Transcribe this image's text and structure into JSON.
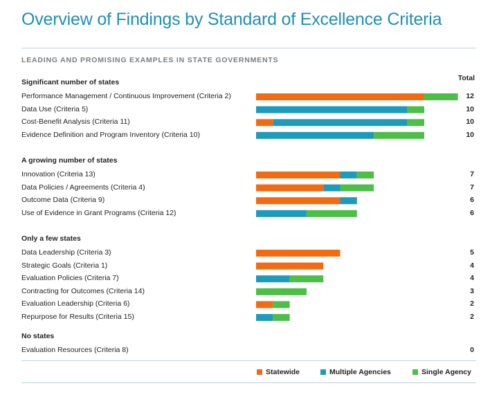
{
  "page": {
    "title": "Overview of Findings by Standard of Excellence Criteria",
    "subtitle": "LEADING AND PROMISING EXAMPLES IN STATE GOVERNMENTS",
    "total_header": "Total"
  },
  "colors": {
    "statewide": "#f26b13",
    "multiple_agencies": "#1d9bbd",
    "single_agency": "#4cc046",
    "title": "#1e90b8"
  },
  "legend": [
    {
      "label": "Statewide",
      "color": "#f26b13"
    },
    {
      "label": "Multiple Agencies",
      "color": "#1d9bbd"
    },
    {
      "label": "Single Agency",
      "color": "#4cc046"
    }
  ],
  "chart_data": {
    "type": "bar",
    "orientation": "horizontal",
    "stacked": true,
    "series_names": [
      "Statewide",
      "Multiple Agencies",
      "Single Agency"
    ],
    "groups": [
      {
        "name": "Significant number of states",
        "rows": [
          {
            "label": "Performance Management / Continuous Improvement (Criteria 2)",
            "statewide": 10,
            "multiple": 0,
            "single": 2,
            "total": "12"
          },
          {
            "label": "Data Use (Criteria 5)",
            "statewide": 0,
            "multiple": 9,
            "single": 1,
            "total": "10"
          },
          {
            "label": "Cost-Benefit Analysis (Criteria 11)",
            "statewide": 1,
            "multiple": 8,
            "single": 1,
            "total": "10"
          },
          {
            "label": "Evidence Definition and Program Inventory (Criteria 10)",
            "statewide": 0,
            "multiple": 7,
            "single": 3,
            "total": "10"
          }
        ]
      },
      {
        "name": "A growing number of states",
        "rows": [
          {
            "label": "Innovation (Criteria 13)",
            "statewide": 5,
            "multiple": 1,
            "single": 1,
            "total": "7"
          },
          {
            "label": "Data Policies / Agreements (Criteria 4)",
            "statewide": 4,
            "multiple": 1,
            "single": 2,
            "total": "7"
          },
          {
            "label": "Outcome Data (Criteria 9)",
            "statewide": 5,
            "multiple": 1,
            "single": 0,
            "total": "6"
          },
          {
            "label": "Use of Evidence in Grant Programs (Criteria 12)",
            "statewide": 0,
            "multiple": 3,
            "single": 3,
            "total": "6"
          }
        ]
      },
      {
        "name": "Only a few states",
        "rows": [
          {
            "label": "Data Leadership (Criteria 3)",
            "statewide": 5,
            "multiple": 0,
            "single": 0,
            "total": "5"
          },
          {
            "label": "Strategic Goals (Criteria 1)",
            "statewide": 4,
            "multiple": 0,
            "single": 0,
            "total": "4"
          },
          {
            "label": "Evaluation Policies (Criteria 7)",
            "statewide": 0,
            "multiple": 2,
            "single": 2,
            "total": "4"
          },
          {
            "label": "Contracting for Outcomes (Criteria 14)",
            "statewide": 0,
            "multiple": 0,
            "single": 3,
            "total": "3"
          },
          {
            "label": "Evaluation Leadership (Criteria 6)",
            "statewide": 1,
            "multiple": 0,
            "single": 1,
            "total": "2"
          },
          {
            "label": "Repurpose for Results (Criteria 15)",
            "statewide": 0,
            "multiple": 1,
            "single": 1,
            "total": "2"
          }
        ]
      },
      {
        "name": "No states",
        "rows": [
          {
            "label": "Evaluation Resources (Criteria 8)",
            "statewide": 0,
            "multiple": 0,
            "single": 0,
            "total": "0"
          }
        ]
      }
    ]
  }
}
